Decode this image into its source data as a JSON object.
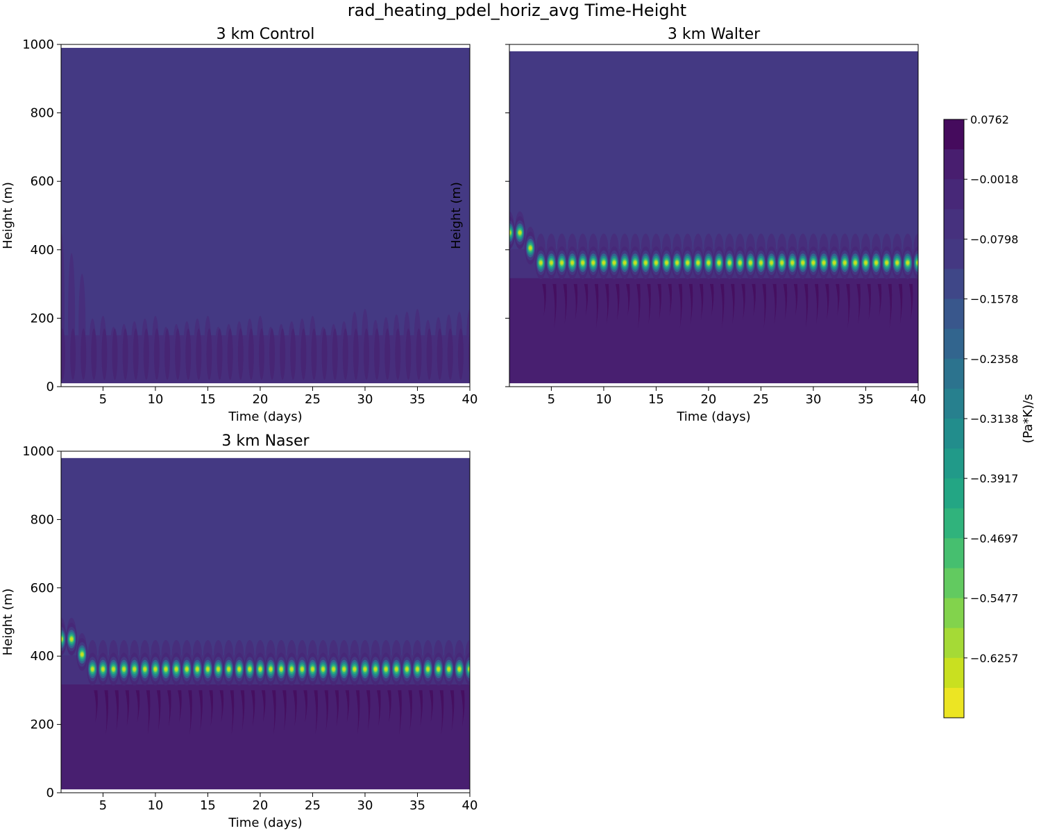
{
  "figure": {
    "title": "rad_heating_pdel_horiz_avg Time-Height"
  },
  "colors": {
    "viridis": [
      "#fde725",
      "#c8e020",
      "#90d743",
      "#5ec962",
      "#35b779",
      "#20a486",
      "#21918c",
      "#287c8e",
      "#31688e",
      "#3b528b",
      "#443983",
      "#472e7c",
      "#481f70",
      "#440154"
    ],
    "background": "#443983",
    "layer_dark": "#481f70",
    "layer_mid": "#472e7c"
  },
  "chart_data": [
    {
      "type": "heatmap",
      "title": "3 km Control",
      "xlabel": "Time (days)",
      "ylabel": "Height (m)",
      "xlim": [
        1,
        40
      ],
      "ylim": [
        0,
        1000
      ],
      "xticks": [
        5,
        10,
        15,
        20,
        25,
        30,
        35,
        40
      ],
      "yticks": [
        0,
        200,
        400,
        600,
        800,
        1000
      ],
      "show_ytick_labels": true,
      "show_xtick_labels": true,
      "field_top": 990,
      "field_bottom": 10,
      "features": {
        "layer": {
          "bottom": 20,
          "top": 150,
          "min_value": -0.02
        },
        "layer_bursts_top": 215,
        "initial_plume_top": 450,
        "bursts_per_day": 1
      }
    },
    {
      "type": "heatmap",
      "title": "3 km Walter",
      "xlabel": "Time (days)",
      "ylabel": "Height (m)",
      "xlim": [
        1,
        40
      ],
      "ylim": [
        0,
        1000
      ],
      "xticks": [
        5,
        10,
        15,
        20,
        25,
        30,
        35,
        40
      ],
      "yticks": [
        0,
        200,
        400,
        600,
        800,
        1000
      ],
      "show_ytick_labels": false,
      "show_xtick_labels": true,
      "field_top": 980,
      "field_bottom": 10,
      "features": {
        "boundary_layer_top": 400,
        "cooling_band_height": 362,
        "cooling_band_min": -0.66,
        "initial_band_heights": [
          [
            1.0,
            450
          ],
          [
            2.1,
            405
          ],
          [
            3.2,
            362
          ]
        ],
        "streaks_bottom": 170,
        "cap_top": 435,
        "bursts_per_day": 1
      }
    },
    {
      "type": "heatmap",
      "title": "3 km Naser",
      "xlabel": "Time (days)",
      "ylabel": "Height (m)",
      "xlim": [
        1,
        40
      ],
      "ylim": [
        0,
        1000
      ],
      "xticks": [
        5,
        10,
        15,
        20,
        25,
        30,
        35,
        40
      ],
      "yticks": [
        0,
        200,
        400,
        600,
        800,
        1000
      ],
      "show_ytick_labels": true,
      "show_xtick_labels": true,
      "field_top": 980,
      "field_bottom": 10,
      "features": {
        "boundary_layer_top": 400,
        "cooling_band_height": 362,
        "cooling_band_min": -0.66,
        "initial_band_heights": [
          [
            1.0,
            450
          ],
          [
            2.1,
            405
          ],
          [
            3.2,
            362
          ]
        ],
        "streaks_bottom": 170,
        "cap_top": 435,
        "bursts_per_day": 1
      }
    }
  ],
  "colorbar": {
    "label": "(Pa*K)/s",
    "max": 0.0762,
    "min": -0.7037,
    "levels": 20,
    "tick_values": [
      0.0762,
      -0.0018,
      -0.0798,
      -0.1578,
      -0.2358,
      -0.3138,
      -0.3917,
      -0.4697,
      -0.5477,
      -0.6257
    ],
    "tick_labels": [
      "0.0762",
      "−0.0018",
      "−0.0798",
      "−0.1578",
      "−0.2358",
      "−0.3138",
      "−0.3917",
      "−0.4697",
      "−0.5477",
      "−0.6257"
    ]
  }
}
